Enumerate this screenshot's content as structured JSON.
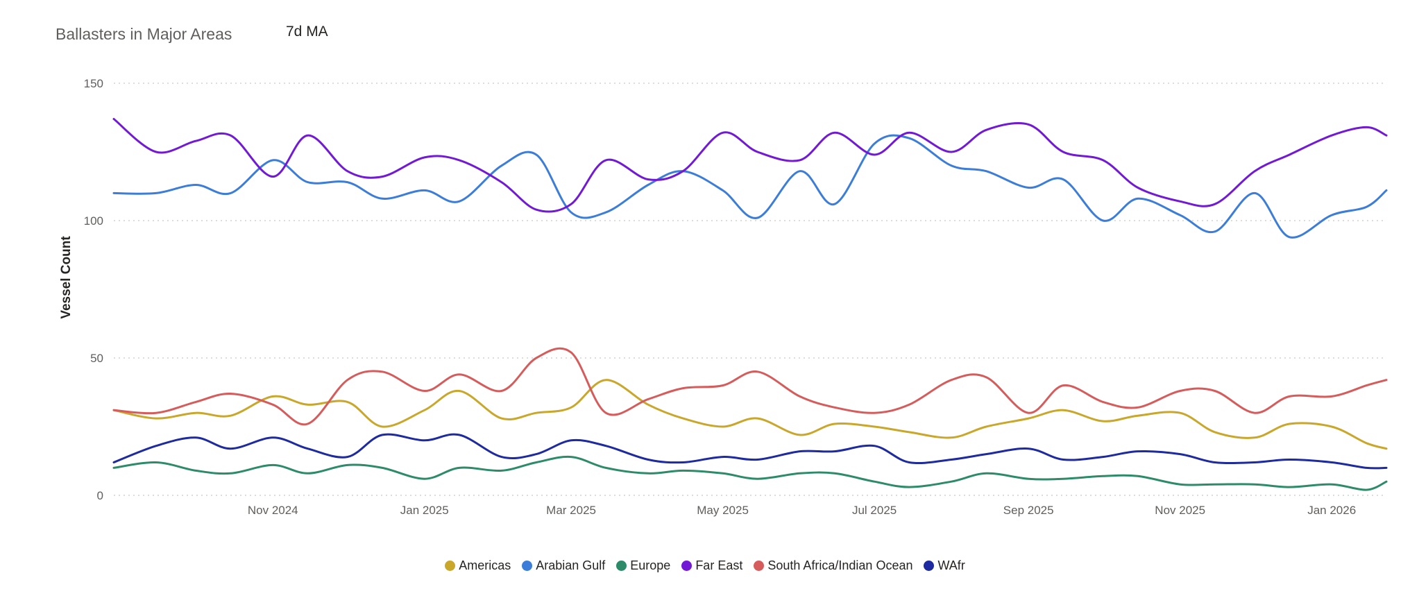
{
  "header": {
    "title": "Ballasters in Major Areas",
    "subtitle": "7d MA"
  },
  "chart_data": {
    "type": "line",
    "title": "Ballasters in Major Areas",
    "subtitle": "7d MA",
    "ylabel": "Vessel Count",
    "xlabel": "",
    "ylim": [
      0,
      150
    ],
    "yticks": [
      0,
      50,
      100,
      150
    ],
    "xlim": [
      "2024-08-29",
      "2026-01-23"
    ],
    "xticks": [
      {
        "label": "Nov 2024",
        "date": "2024-11-01"
      },
      {
        "label": "Jan 2025",
        "date": "2025-01-01"
      },
      {
        "label": "Mar 2025",
        "date": "2025-03-01"
      },
      {
        "label": "May 2025",
        "date": "2025-05-01"
      },
      {
        "label": "Jul 2025",
        "date": "2025-07-01"
      },
      {
        "label": "Sep 2025",
        "date": "2025-09-01"
      },
      {
        "label": "Nov 2025",
        "date": "2025-11-01"
      },
      {
        "label": "Jan 2026",
        "date": "2026-01-01"
      }
    ],
    "grid": true,
    "legend_position": "bottom-center",
    "x": [
      "2024-08-29",
      "2024-09-15",
      "2024-10-01",
      "2024-10-15",
      "2024-11-01",
      "2024-11-15",
      "2024-12-01",
      "2024-12-15",
      "2025-01-01",
      "2025-01-15",
      "2025-02-01",
      "2025-02-15",
      "2025-03-01",
      "2025-03-15",
      "2025-04-01",
      "2025-04-15",
      "2025-05-01",
      "2025-05-15",
      "2025-06-01",
      "2025-06-15",
      "2025-07-01",
      "2025-07-15",
      "2025-08-01",
      "2025-08-15",
      "2025-09-01",
      "2025-09-15",
      "2025-10-01",
      "2025-10-15",
      "2025-11-01",
      "2025-11-15",
      "2025-12-01",
      "2025-12-15",
      "2026-01-01",
      "2026-01-15",
      "2026-01-23"
    ],
    "series": [
      {
        "name": "Americas",
        "color": "#c9a72b",
        "values": [
          31,
          28,
          30,
          29,
          36,
          33,
          34,
          25,
          31,
          38,
          28,
          30,
          32,
          42,
          33,
          28,
          25,
          28,
          22,
          26,
          25,
          23,
          21,
          25,
          28,
          31,
          27,
          29,
          30,
          23,
          21,
          26,
          25,
          19,
          17
        ]
      },
      {
        "name": "Arabian Gulf",
        "color": "#3b7dd8",
        "values": [
          110,
          110,
          113,
          110,
          122,
          114,
          114,
          108,
          111,
          107,
          120,
          124,
          103,
          103,
          113,
          118,
          111,
          101,
          118,
          106,
          128,
          130,
          120,
          118,
          112,
          115,
          100,
          108,
          102,
          96,
          110,
          94,
          102,
          105,
          111
        ]
      },
      {
        "name": "Europe",
        "color": "#2e8b6a",
        "values": [
          10,
          12,
          9,
          8,
          11,
          8,
          11,
          10,
          6,
          10,
          9,
          12,
          14,
          10,
          8,
          9,
          8,
          6,
          8,
          8,
          5,
          3,
          5,
          8,
          6,
          6,
          7,
          7,
          4,
          4,
          4,
          3,
          4,
          2,
          5
        ]
      },
      {
        "name": "Far East",
        "color": "#7219d6",
        "values": [
          137,
          125,
          129,
          131,
          116,
          131,
          118,
          116,
          123,
          122,
          114,
          104,
          106,
          122,
          115,
          118,
          132,
          125,
          122,
          132,
          124,
          132,
          125,
          133,
          135,
          125,
          122,
          112,
          107,
          106,
          118,
          124,
          131,
          134,
          131
        ]
      },
      {
        "name": "South Africa/Indian Ocean",
        "color": "#d65c5c",
        "values": [
          31,
          30,
          34,
          37,
          33,
          26,
          42,
          45,
          38,
          44,
          38,
          50,
          52,
          30,
          35,
          39,
          40,
          45,
          36,
          32,
          30,
          33,
          42,
          43,
          30,
          40,
          34,
          32,
          38,
          38,
          30,
          36,
          36,
          40,
          42
        ]
      },
      {
        "name": "WAfr",
        "color": "#1d2aa0",
        "values": [
          12,
          18,
          21,
          17,
          21,
          17,
          14,
          22,
          20,
          22,
          14,
          15,
          20,
          18,
          13,
          12,
          14,
          13,
          16,
          16,
          18,
          12,
          13,
          15,
          17,
          13,
          14,
          16,
          15,
          12,
          12,
          13,
          12,
          10,
          10
        ]
      }
    ]
  }
}
